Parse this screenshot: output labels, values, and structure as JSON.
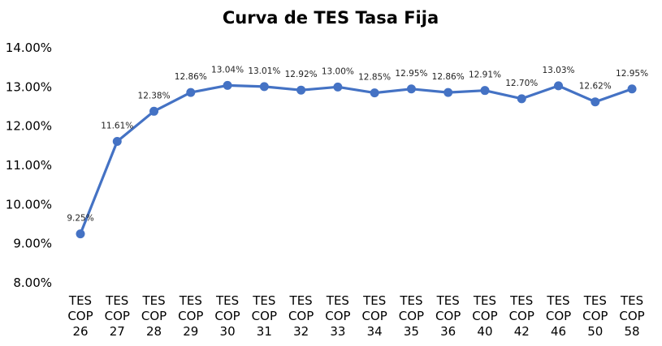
{
  "chart_data": {
    "type": "line",
    "title": "Curva de TES Tasa Fija",
    "xlabel": "",
    "ylabel": "",
    "categories": [
      [
        "TES",
        "COP",
        "26"
      ],
      [
        "TES",
        "COP",
        "27"
      ],
      [
        "TES",
        "COP",
        "28"
      ],
      [
        "TES",
        "COP",
        "29"
      ],
      [
        "TES",
        "COP",
        "30"
      ],
      [
        "TES",
        "COP",
        "31"
      ],
      [
        "TES",
        "COP",
        "32"
      ],
      [
        "TES",
        "COP",
        "33"
      ],
      [
        "TES",
        "COP",
        "34"
      ],
      [
        "TES",
        "COP",
        "35"
      ],
      [
        "TES",
        "COP",
        "36"
      ],
      [
        "TES",
        "COP",
        "40"
      ],
      [
        "TES",
        "COP",
        "42"
      ],
      [
        "TES",
        "COP",
        "46"
      ],
      [
        "TES",
        "COP",
        "50"
      ],
      [
        "TES",
        "COP",
        "58"
      ]
    ],
    "series": [
      {
        "values": [
          9.25,
          11.61,
          12.38,
          12.86,
          13.04,
          13.01,
          12.92,
          13.0,
          12.85,
          12.95,
          12.86,
          12.91,
          12.7,
          13.03,
          12.62,
          12.95
        ],
        "labels": [
          "9.25%",
          "11.61%",
          "12.38%",
          "12.86%",
          "13.04%",
          "13.01%",
          "12.92%",
          "13.00%",
          "12.85%",
          "12.95%",
          "12.86%",
          "12.91%",
          "12.70%",
          "13.03%",
          "12.62%",
          "12.95%"
        ],
        "color": "#4472C4"
      }
    ],
    "ylim": [
      8,
      14
    ],
    "yticks": [
      8,
      9,
      10,
      11,
      12,
      13,
      14
    ],
    "ytick_labels": [
      "8.00%",
      "9.00%",
      "10.00%",
      "11.00%",
      "12.00%",
      "13.00%",
      "14.00%"
    ],
    "grid": false,
    "legend": "none"
  }
}
